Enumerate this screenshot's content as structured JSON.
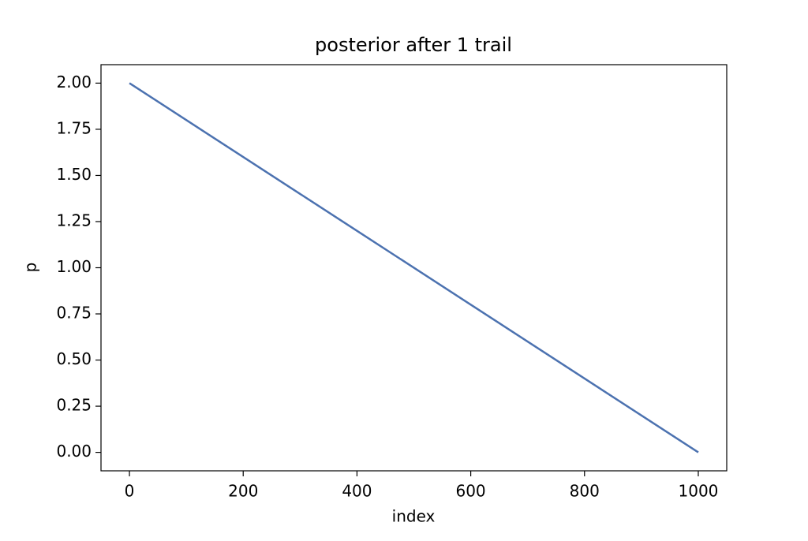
{
  "chart_data": {
    "type": "line",
    "title": "posterior after 1 trail",
    "x_label": "index",
    "y_label": "p",
    "x": [
      0,
      200,
      400,
      600,
      800,
      1000
    ],
    "series": [
      {
        "color": "#4c72b0",
        "values": [
          2.0,
          1.6,
          1.2,
          0.8,
          0.4,
          0.0
        ]
      }
    ],
    "xlim": [
      -50,
      1050
    ],
    "ylim": [
      -0.1,
      2.1
    ],
    "xticks": [
      0,
      200,
      400,
      600,
      800,
      1000
    ],
    "yticks": [
      {
        "value": 0,
        "label": "0.00"
      },
      {
        "value": 0.25,
        "label": "0.25"
      },
      {
        "value": 0.5,
        "label": "0.50"
      },
      {
        "value": 0.75,
        "label": "0.75"
      },
      {
        "value": 1,
        "label": "1.00"
      },
      {
        "value": 1.25,
        "label": "1.25"
      },
      {
        "value": 1.5,
        "label": "1.50"
      },
      {
        "value": 1.75,
        "label": "1.75"
      },
      {
        "value": 2,
        "label": "2.00"
      }
    ],
    "grid": false
  }
}
